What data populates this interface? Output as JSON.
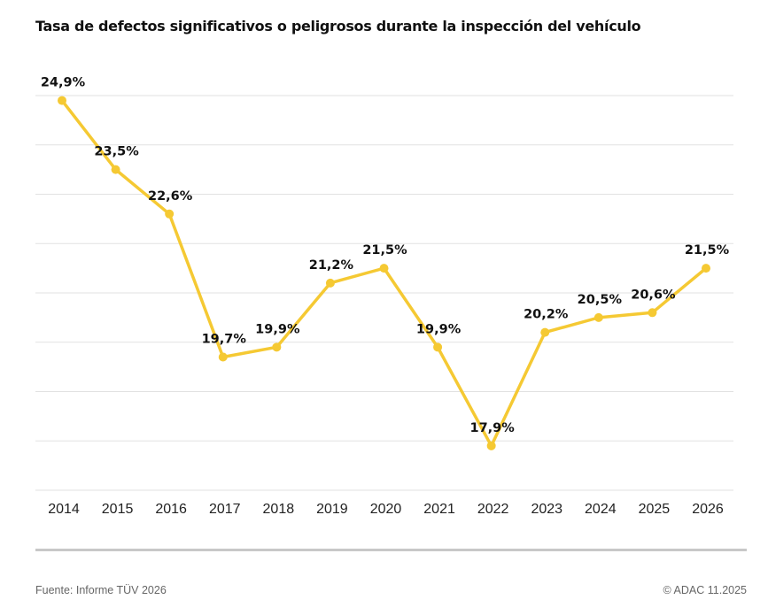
{
  "chart_data": {
    "type": "line",
    "title": "Tasa de defectos significativos o peligrosos durante la inspección del vehículo",
    "categories": [
      "2014",
      "2015",
      "2016",
      "2017",
      "2018",
      "2019",
      "2020",
      "2021",
      "2022",
      "2023",
      "2024",
      "2025",
      "2026"
    ],
    "values": [
      24.9,
      23.5,
      22.6,
      19.7,
      19.9,
      21.2,
      21.5,
      19.9,
      17.9,
      20.2,
      20.5,
      20.6,
      21.5
    ],
    "labels": [
      "24,9%",
      "23,5%",
      "22,6%",
      "19,7%",
      "19,9%",
      "21,2%",
      "21,5%",
      "19,9%",
      "17,9%",
      "20,2%",
      "20,5%",
      "20,6%",
      "21,5%"
    ],
    "ylim": [
      17,
      25
    ],
    "grid": true,
    "line_color": "#f5c933",
    "xlabel": "",
    "ylabel": ""
  },
  "footer": {
    "source": "Fuente: Informe TÜV 2026",
    "copyright": "© ADAC 11.2025"
  }
}
